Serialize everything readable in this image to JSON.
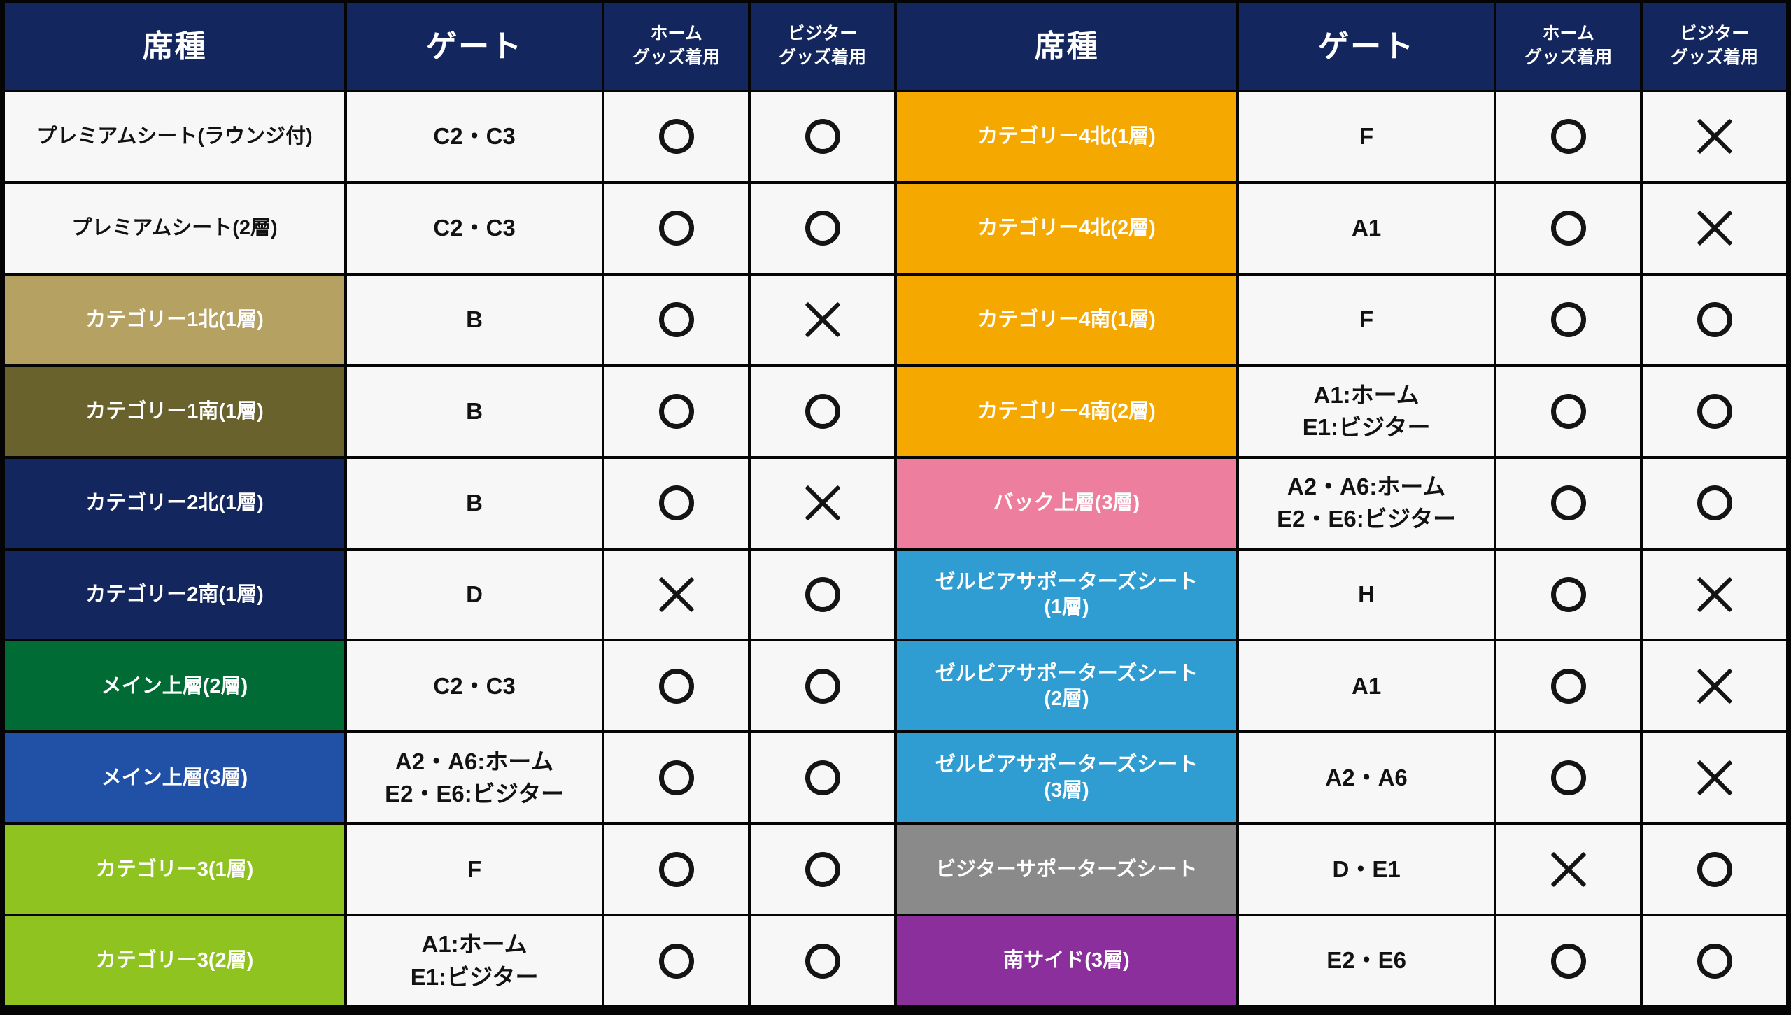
{
  "table": {
    "headers": {
      "seat": "席種",
      "gate": "ゲート",
      "home": "ホーム\nグッズ着用",
      "visitor": "ビジター\nグッズ着用"
    },
    "marks": {
      "allowed": "○",
      "not_allowed": "✕"
    },
    "colors": {
      "header_navy": "#14265E",
      "row_white": "#F7F7F7",
      "tan": "#B5A263",
      "olive": "#6A622D",
      "navy": "#14265E",
      "green": "#006B35",
      "blue": "#2151A6",
      "yellow_green": "#8FC31F",
      "orange": "#F5A800",
      "pink": "#ED7E9D",
      "light_blue": "#2F9CD2",
      "gray": "#8A8A8A",
      "purple": "#8B2F9C",
      "grid_line": "#050505",
      "text_dark": "#121212",
      "text_light": "#FFFFFF"
    },
    "left_rows": [
      {
        "label": "プレミアムシート(ラウンジ付)",
        "bg": "#F7F7F7",
        "fg": "#121212",
        "gate": "C2・C3",
        "home": "○",
        "visitor": "○"
      },
      {
        "label": "プレミアムシート(2層)",
        "bg": "#F7F7F7",
        "fg": "#121212",
        "gate": "C2・C3",
        "home": "○",
        "visitor": "○"
      },
      {
        "label": "カテゴリー1北(1層)",
        "bg": "#B5A263",
        "fg": "#FFFFFF",
        "gate": "B",
        "home": "○",
        "visitor": "✕"
      },
      {
        "label": "カテゴリー1南(1層)",
        "bg": "#6A622D",
        "fg": "#FFFFFF",
        "gate": "B",
        "home": "○",
        "visitor": "○"
      },
      {
        "label": "カテゴリー2北(1層)",
        "bg": "#14265E",
        "fg": "#FFFFFF",
        "gate": "B",
        "home": "○",
        "visitor": "✕"
      },
      {
        "label": "カテゴリー2南(1層)",
        "bg": "#14265E",
        "fg": "#FFFFFF",
        "gate": "D",
        "home": "✕",
        "visitor": "○"
      },
      {
        "label": "メイン上層(2層)",
        "bg": "#006B35",
        "fg": "#FFFFFF",
        "gate": "C2・C3",
        "home": "○",
        "visitor": "○"
      },
      {
        "label": "メイン上層(3層)",
        "bg": "#2151A6",
        "fg": "#FFFFFF",
        "gate": "A2・A6:ホーム\nE2・E6:ビジター",
        "home": "○",
        "visitor": "○"
      },
      {
        "label": "カテゴリー3(1層)",
        "bg": "#8FC31F",
        "fg": "#FFFFFF",
        "gate": "F",
        "home": "○",
        "visitor": "○"
      },
      {
        "label": "カテゴリー3(2層)",
        "bg": "#8FC31F",
        "fg": "#FFFFFF",
        "gate": "A1:ホーム\nE1:ビジター",
        "home": "○",
        "visitor": "○"
      }
    ],
    "right_rows": [
      {
        "label": "カテゴリー4北(1層)",
        "bg": "#F5A800",
        "fg": "#FFFFFF",
        "gate": "F",
        "home": "○",
        "visitor": "✕"
      },
      {
        "label": "カテゴリー4北(2層)",
        "bg": "#F5A800",
        "fg": "#FFFFFF",
        "gate": "A1",
        "home": "○",
        "visitor": "✕"
      },
      {
        "label": "カテゴリー4南(1層)",
        "bg": "#F5A800",
        "fg": "#FFFFFF",
        "gate": "F",
        "home": "○",
        "visitor": "○"
      },
      {
        "label": "カテゴリー4南(2層)",
        "bg": "#F5A800",
        "fg": "#FFFFFF",
        "gate": "A1:ホーム\nE1:ビジター",
        "home": "○",
        "visitor": "○"
      },
      {
        "label": "バック上層(3層)",
        "bg": "#ED7E9D",
        "fg": "#FFFFFF",
        "gate": "A2・A6:ホーム\nE2・E6:ビジター",
        "home": "○",
        "visitor": "○"
      },
      {
        "label": "ゼルビアサポーターズシート\n(1層)",
        "bg": "#2F9CD2",
        "fg": "#FFFFFF",
        "gate": "H",
        "home": "○",
        "visitor": "✕"
      },
      {
        "label": "ゼルビアサポーターズシート\n(2層)",
        "bg": "#2F9CD2",
        "fg": "#FFFFFF",
        "gate": "A1",
        "home": "○",
        "visitor": "✕"
      },
      {
        "label": "ゼルビアサポーターズシート\n(3層)",
        "bg": "#2F9CD2",
        "fg": "#FFFFFF",
        "gate": "A2・A6",
        "home": "○",
        "visitor": "✕"
      },
      {
        "label": "ビジターサポーターズシート",
        "bg": "#8A8A8A",
        "fg": "#FFFFFF",
        "gate": "D・E1",
        "home": "✕",
        "visitor": "○"
      },
      {
        "label": "南サイド(3層)",
        "bg": "#8B2F9C",
        "fg": "#FFFFFF",
        "gate": "E2・E6",
        "home": "○",
        "visitor": "○"
      }
    ]
  }
}
